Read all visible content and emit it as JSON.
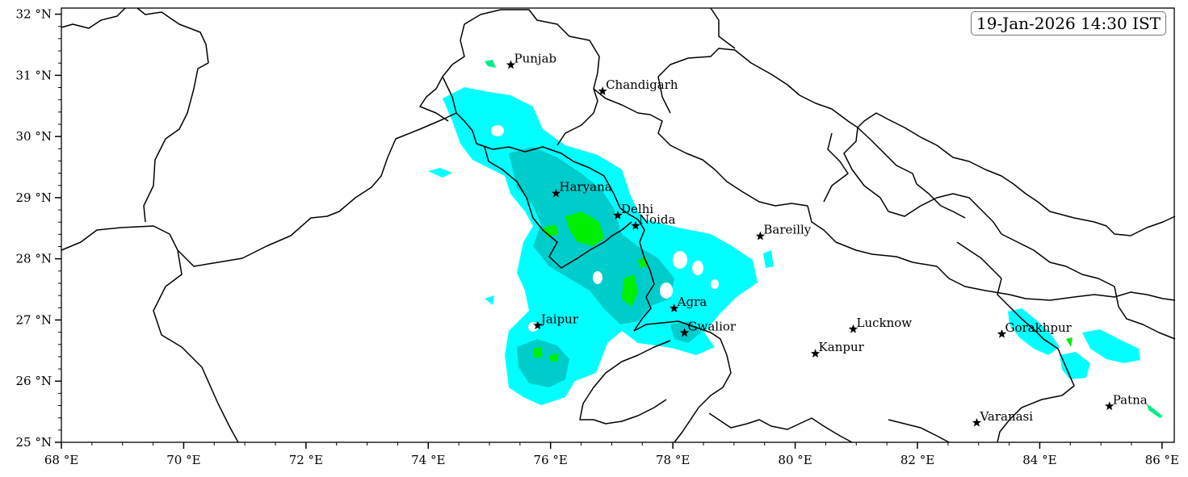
{
  "timestamp": "19-Jan-2026 14:30 IST",
  "axes": {
    "lon_range": [
      68,
      86.2
    ],
    "lat_range": [
      25,
      32.1
    ],
    "x_ticks": [
      {
        "value": 68,
        "label": "68 °E"
      },
      {
        "value": 70,
        "label": "70 °E"
      },
      {
        "value": 72,
        "label": "72 °E"
      },
      {
        "value": 74,
        "label": "74 °E"
      },
      {
        "value": 76,
        "label": "76 °E"
      },
      {
        "value": 78,
        "label": "78 °E"
      },
      {
        "value": 80,
        "label": "80 °E"
      },
      {
        "value": 82,
        "label": "82 °E"
      },
      {
        "value": 84,
        "label": "84 °E"
      },
      {
        "value": 86,
        "label": "86 °E"
      }
    ],
    "y_ticks": [
      {
        "value": 25,
        "label": "25 °N"
      },
      {
        "value": 26,
        "label": "26 °N"
      },
      {
        "value": 27,
        "label": "27 °N"
      },
      {
        "value": 28,
        "label": "28 °N"
      },
      {
        "value": 29,
        "label": "29 °N"
      },
      {
        "value": 30,
        "label": "30 °N"
      },
      {
        "value": 31,
        "label": "31 °N"
      },
      {
        "value": 32,
        "label": "32 °N"
      }
    ]
  },
  "cities": [
    {
      "name": "Punjab",
      "lon": 75.35,
      "lat": 31.17
    },
    {
      "name": "Chandigarh",
      "lon": 76.85,
      "lat": 30.74
    },
    {
      "name": "Haryana",
      "lon": 76.09,
      "lat": 29.07
    },
    {
      "name": "Delhi",
      "lon": 77.1,
      "lat": 28.71
    },
    {
      "name": "Noida",
      "lon": 77.39,
      "lat": 28.54
    },
    {
      "name": "Bareilly",
      "lon": 79.43,
      "lat": 28.37
    },
    {
      "name": "Agra",
      "lon": 78.02,
      "lat": 27.19
    },
    {
      "name": "Jaipur",
      "lon": 75.79,
      "lat": 26.91
    },
    {
      "name": "Gwalior",
      "lon": 78.19,
      "lat": 26.79
    },
    {
      "name": "Lucknow",
      "lon": 80.95,
      "lat": 26.85
    },
    {
      "name": "Kanpur",
      "lon": 80.33,
      "lat": 26.45
    },
    {
      "name": "Gorakhpur",
      "lon": 83.38,
      "lat": 26.77
    },
    {
      "name": "Varanasi",
      "lon": 82.97,
      "lat": 25.32
    },
    {
      "name": "Patna",
      "lon": 85.14,
      "lat": 25.59
    }
  ],
  "colors": {
    "light_cyan": "#00ffff",
    "teal": "#00cccc",
    "green": "#00ee00",
    "spring_green": "#00ee88"
  }
}
